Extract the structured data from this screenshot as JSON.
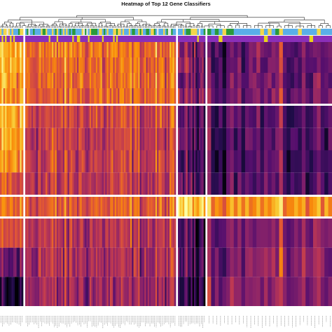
{
  "chart_data": {
    "type": "heatmap",
    "title": "Heatmap of Top 12 Gene Classifiers",
    "xlabel": "",
    "ylabel": "",
    "colormap": "inferno",
    "value_range": [
      -2.5,
      2.5
    ],
    "rows": 12,
    "columns": 160,
    "row_groups": [
      {
        "rows": 4
      },
      {
        "rows": 4
      },
      {
        "rows": 1
      },
      {
        "rows": 3
      }
    ],
    "column_groups": [
      {
        "columns": 14,
        "mean_profile": [
          1.6,
          1.5,
          1.3,
          1.2,
          1.4,
          1.3,
          1.2,
          0.5,
          0.8,
          0.4,
          -1.0,
          -2.2
        ]
      },
      {
        "columns": 96,
        "mean_profile": [
          0.9,
          0.8,
          0.8,
          0.7,
          0.2,
          0.1,
          0.1,
          0.0,
          0.6,
          -0.1,
          -0.2,
          -0.4
        ]
      },
      {
        "columns": 17,
        "mean_profile": [
          -0.6,
          -0.5,
          -0.8,
          -0.4,
          -1.1,
          -1.0,
          -1.2,
          -1.0,
          2.2,
          -1.3,
          -1.2,
          -1.6
        ]
      },
      {
        "columns": 33,
        "mean_profile": [
          -1.0,
          -1.1,
          -1.0,
          -0.9,
          -1.2,
          -1.3,
          -1.3,
          -1.2,
          1.3,
          -0.8,
          -0.6,
          -0.7
        ]
      }
    ],
    "annotation_tracks": [
      {
        "palette": [
          "#5aaee8",
          "#f2d64a",
          "#2a9a3a",
          "#e8e8e8"
        ]
      },
      {
        "palette": [
          "#8a2fb8",
          "#e8d21a"
        ]
      }
    ],
    "colors": {
      "separator": "#ffffff",
      "dendrogram": "#222222",
      "column_labels": "#555555"
    }
  }
}
